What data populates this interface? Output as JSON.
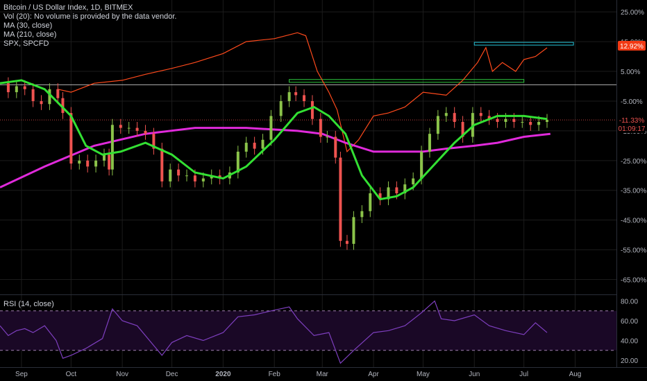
{
  "legend": {
    "title": "Bitcoin / US Dollar Index, 1D, BITMEX",
    "vol": "Vol (20): No volume is provided by the data vendor.",
    "ma30": "MA (30, close)",
    "ma210": "MA (210, close)",
    "spx": "SPX, SPCFD"
  },
  "rsi_label": "RSI (14, close)",
  "colors": {
    "background": "#000000",
    "up_candle": "#8bc34a",
    "down_candle": "#ef5350",
    "ma30": "#33e033",
    "ma210": "#e02adb",
    "spx": "#ff4a1c",
    "rsi": "#7e3fbf",
    "resistance_cyan": "#26c6da",
    "resistance_green": "#2ecc40",
    "badge_spx": "#f23a14",
    "badge_price_text": "#ef5350",
    "grid": "#1c1c1c",
    "axis_text": "#b2b5be"
  },
  "badges": {
    "spx_value": "12.92%",
    "price_value": "-11.33%",
    "countdown": "01:09:17"
  },
  "chart_data": [
    {
      "type": "line",
      "title": "Bitcoin / US Dollar Index, 1D, BITMEX",
      "y_axis": {
        "unit": "percent",
        "range": [
          -70,
          29
        ],
        "ticks": [
          "25.00%",
          "15.00%",
          "5.00%",
          "-5.00%",
          "-15.00%",
          "-25.00%",
          "-35.00%",
          "-45.00%",
          "-55.00%",
          "-65.00%"
        ],
        "tick_values": [
          25,
          15,
          5,
          -5,
          -15,
          -25,
          -35,
          -45,
          -55,
          -65
        ]
      },
      "x_axis": {
        "ticks": [
          "Sep",
          "Oct",
          "Nov",
          "Dec",
          "2020",
          "Feb",
          "Mar",
          "Apr",
          "May",
          "Jun",
          "Jul",
          "Aug"
        ],
        "tick_dates": [
          "2019-09-01",
          "2019-10-01",
          "2019-11-01",
          "2019-12-01",
          "2020-01-01",
          "2020-02-01",
          "2020-03-01",
          "2020-04-01",
          "2020-05-01",
          "2020-06-01",
          "2020-07-01",
          "2020-08-01"
        ],
        "range": [
          "2019-08-19",
          "2020-08-26"
        ]
      },
      "series": [
        {
          "name": "Bitcoin / US Dollar Index",
          "kind": "candles_close",
          "points": [
            [
              "2019-08-19",
              1
            ],
            [
              "2019-08-24",
              -2
            ],
            [
              "2019-08-29",
              0
            ],
            [
              "2019-09-03",
              -1
            ],
            [
              "2019-09-08",
              -5
            ],
            [
              "2019-09-13",
              -6
            ],
            [
              "2019-09-18",
              -1
            ],
            [
              "2019-09-23",
              -4
            ],
            [
              "2019-09-26",
              -9
            ],
            [
              "2019-10-01",
              -26
            ],
            [
              "2019-10-06",
              -25
            ],
            [
              "2019-10-11",
              -27
            ],
            [
              "2019-10-16",
              -25
            ],
            [
              "2019-10-21",
              -23
            ],
            [
              "2019-10-24",
              -28
            ],
            [
              "2019-10-26",
              -13
            ],
            [
              "2019-10-31",
              -14
            ],
            [
              "2019-11-05",
              -14
            ],
            [
              "2019-11-10",
              -15
            ],
            [
              "2019-11-15",
              -16
            ],
            [
              "2019-11-20",
              -21
            ],
            [
              "2019-11-25",
              -32
            ],
            [
              "2019-11-30",
              -28
            ],
            [
              "2019-12-05",
              -30
            ],
            [
              "2019-12-10",
              -30
            ],
            [
              "2019-12-15",
              -32
            ],
            [
              "2019-12-20",
              -31
            ],
            [
              "2019-12-25",
              -30
            ],
            [
              "2019-12-30",
              -31
            ],
            [
              "2020-01-05",
              -29
            ],
            [
              "2020-01-10",
              -22
            ],
            [
              "2020-01-15",
              -19
            ],
            [
              "2020-01-20",
              -21
            ],
            [
              "2020-01-25",
              -18
            ],
            [
              "2020-01-30",
              -10
            ],
            [
              "2020-02-05",
              -5
            ],
            [
              "2020-02-10",
              -2
            ],
            [
              "2020-02-14",
              -3
            ],
            [
              "2020-02-19",
              -5
            ],
            [
              "2020-02-24",
              -11
            ],
            [
              "2020-02-29",
              -17
            ],
            [
              "2020-03-04",
              -17
            ],
            [
              "2020-03-09",
              -24
            ],
            [
              "2020-03-12",
              -52
            ],
            [
              "2020-03-16",
              -53
            ],
            [
              "2020-03-20",
              -44
            ],
            [
              "2020-03-25",
              -42
            ],
            [
              "2020-03-30",
              -36
            ],
            [
              "2020-04-05",
              -38
            ],
            [
              "2020-04-10",
              -34
            ],
            [
              "2020-04-15",
              -36
            ],
            [
              "2020-04-20",
              -33
            ],
            [
              "2020-04-25",
              -31
            ],
            [
              "2020-04-30",
              -22
            ],
            [
              "2020-05-05",
              -16
            ],
            [
              "2020-05-10",
              -10
            ],
            [
              "2020-05-15",
              -9
            ],
            [
              "2020-05-20",
              -12
            ],
            [
              "2020-05-25",
              -17
            ],
            [
              "2020-05-31",
              -9
            ],
            [
              "2020-06-05",
              -10
            ],
            [
              "2020-06-10",
              -11
            ],
            [
              "2020-06-15",
              -12
            ],
            [
              "2020-06-20",
              -11
            ],
            [
              "2020-06-25",
              -12
            ],
            [
              "2020-06-30",
              -12
            ],
            [
              "2020-07-05",
              -13
            ],
            [
              "2020-07-10",
              -12
            ],
            [
              "2020-07-15",
              -11.33
            ]
          ]
        },
        {
          "name": "MA (30, close)",
          "points": [
            [
              "2019-08-19",
              1
            ],
            [
              "2019-09-01",
              2
            ],
            [
              "2019-09-15",
              -1
            ],
            [
              "2019-10-01",
              -10
            ],
            [
              "2019-10-10",
              -20
            ],
            [
              "2019-10-20",
              -23
            ],
            [
              "2019-10-31",
              -22
            ],
            [
              "2019-11-15",
              -19
            ],
            [
              "2019-12-01",
              -23
            ],
            [
              "2019-12-15",
              -29
            ],
            [
              "2020-01-01",
              -31
            ],
            [
              "2020-01-15",
              -27
            ],
            [
              "2020-02-01",
              -18
            ],
            [
              "2020-02-15",
              -9
            ],
            [
              "2020-02-25",
              -7
            ],
            [
              "2020-03-05",
              -10
            ],
            [
              "2020-03-15",
              -16
            ],
            [
              "2020-03-25",
              -30
            ],
            [
              "2020-04-05",
              -38
            ],
            [
              "2020-04-15",
              -37
            ],
            [
              "2020-04-25",
              -34
            ],
            [
              "2020-05-10",
              -25
            ],
            [
              "2020-05-20",
              -19
            ],
            [
              "2020-06-01",
              -13
            ],
            [
              "2020-06-15",
              -10
            ],
            [
              "2020-07-01",
              -10
            ],
            [
              "2020-07-15",
              -11
            ]
          ]
        },
        {
          "name": "MA (210, close)",
          "points": [
            [
              "2019-08-19",
              -34
            ],
            [
              "2019-09-15",
              -27
            ],
            [
              "2019-10-15",
              -20
            ],
            [
              "2019-11-15",
              -16
            ],
            [
              "2019-12-15",
              -14
            ],
            [
              "2020-01-15",
              -14
            ],
            [
              "2020-02-15",
              -15
            ],
            [
              "2020-03-01",
              -16
            ],
            [
              "2020-03-15",
              -19
            ],
            [
              "2020-04-01",
              -22
            ],
            [
              "2020-05-01",
              -22
            ],
            [
              "2020-05-15",
              -21
            ],
            [
              "2020-06-01",
              -20
            ],
            [
              "2020-06-15",
              -19
            ],
            [
              "2020-07-01",
              -17
            ],
            [
              "2020-07-17",
              -16
            ]
          ]
        },
        {
          "name": "SPX, SPCFD",
          "points": [
            [
              "2019-09-23",
              -1
            ],
            [
              "2019-10-01",
              -2
            ],
            [
              "2019-10-15",
              1
            ],
            [
              "2019-11-01",
              2
            ],
            [
              "2019-11-15",
              4
            ],
            [
              "2019-12-01",
              6
            ],
            [
              "2019-12-15",
              8
            ],
            [
              "2020-01-01",
              11
            ],
            [
              "2020-01-15",
              15
            ],
            [
              "2020-02-01",
              16
            ],
            [
              "2020-02-15",
              18
            ],
            [
              "2020-02-20",
              17
            ],
            [
              "2020-02-27",
              5
            ],
            [
              "2020-03-05",
              -2
            ],
            [
              "2020-03-10",
              -8
            ],
            [
              "2020-03-16",
              -22
            ],
            [
              "2020-03-23",
              -18
            ],
            [
              "2020-04-01",
              -10
            ],
            [
              "2020-04-10",
              -9
            ],
            [
              "2020-04-20",
              -7
            ],
            [
              "2020-05-01",
              -2
            ],
            [
              "2020-05-15",
              -3
            ],
            [
              "2020-05-25",
              2
            ],
            [
              "2020-06-03",
              8
            ],
            [
              "2020-06-08",
              13
            ],
            [
              "2020-06-12",
              5
            ],
            [
              "2020-06-18",
              8
            ],
            [
              "2020-06-26",
              5
            ],
            [
              "2020-07-01",
              9
            ],
            [
              "2020-07-08",
              10
            ],
            [
              "2020-07-15",
              12.92
            ]
          ]
        }
      ],
      "horizontal_lines": [
        {
          "value": 0.5,
          "color": "#ffffff",
          "style": "thin"
        },
        {
          "value": -11.33,
          "color": "#ef5350",
          "style": "dotted"
        }
      ],
      "highlight_boxes": [
        {
          "name": "upper resistance",
          "from": "2020-06-01",
          "to": "2020-07-31",
          "value": 14.3,
          "color": "#26c6da"
        },
        {
          "name": "february high",
          "from": "2020-02-10",
          "to": "2020-07-01",
          "value": 1.8,
          "color": "#2ecc40"
        }
      ],
      "legend_position": "top-left"
    },
    {
      "type": "line",
      "title": "RSI (14, close)",
      "y_axis": {
        "range": [
          13,
          86
        ],
        "ticks": [
          "80.00",
          "60.00",
          "40.00",
          "20.00"
        ],
        "tick_values": [
          80,
          60,
          40,
          20
        ]
      },
      "bands": [
        70,
        30
      ],
      "series": [
        {
          "name": "RSI (14, close)",
          "points": [
            [
              "2019-08-19",
              55
            ],
            [
              "2019-08-24",
              45
            ],
            [
              "2019-08-29",
              50
            ],
            [
              "2019-09-03",
              52
            ],
            [
              "2019-09-08",
              48
            ],
            [
              "2019-09-15",
              55
            ],
            [
              "2019-09-22",
              40
            ],
            [
              "2019-09-26",
              22
            ],
            [
              "2019-10-01",
              25
            ],
            [
              "2019-10-10",
              32
            ],
            [
              "2019-10-20",
              42
            ],
            [
              "2019-10-26",
              72
            ],
            [
              "2019-11-01",
              60
            ],
            [
              "2019-11-10",
              55
            ],
            [
              "2019-11-20",
              35
            ],
            [
              "2019-11-25",
              25
            ],
            [
              "2019-12-01",
              38
            ],
            [
              "2019-12-10",
              45
            ],
            [
              "2019-12-20",
              40
            ],
            [
              "2020-01-01",
              48
            ],
            [
              "2020-01-10",
              64
            ],
            [
              "2020-01-20",
              66
            ],
            [
              "2020-01-30",
              70
            ],
            [
              "2020-02-10",
              74
            ],
            [
              "2020-02-15",
              62
            ],
            [
              "2020-02-25",
              45
            ],
            [
              "2020-03-05",
              48
            ],
            [
              "2020-03-12",
              17
            ],
            [
              "2020-03-20",
              30
            ],
            [
              "2020-04-01",
              48
            ],
            [
              "2020-04-10",
              50
            ],
            [
              "2020-04-20",
              55
            ],
            [
              "2020-04-30",
              68
            ],
            [
              "2020-05-08",
              80
            ],
            [
              "2020-05-12",
              62
            ],
            [
              "2020-05-20",
              60
            ],
            [
              "2020-06-01",
              66
            ],
            [
              "2020-06-10",
              55
            ],
            [
              "2020-06-20",
              50
            ],
            [
              "2020-07-01",
              46
            ],
            [
              "2020-07-08",
              58
            ],
            [
              "2020-07-15",
              48
            ]
          ]
        }
      ]
    }
  ]
}
